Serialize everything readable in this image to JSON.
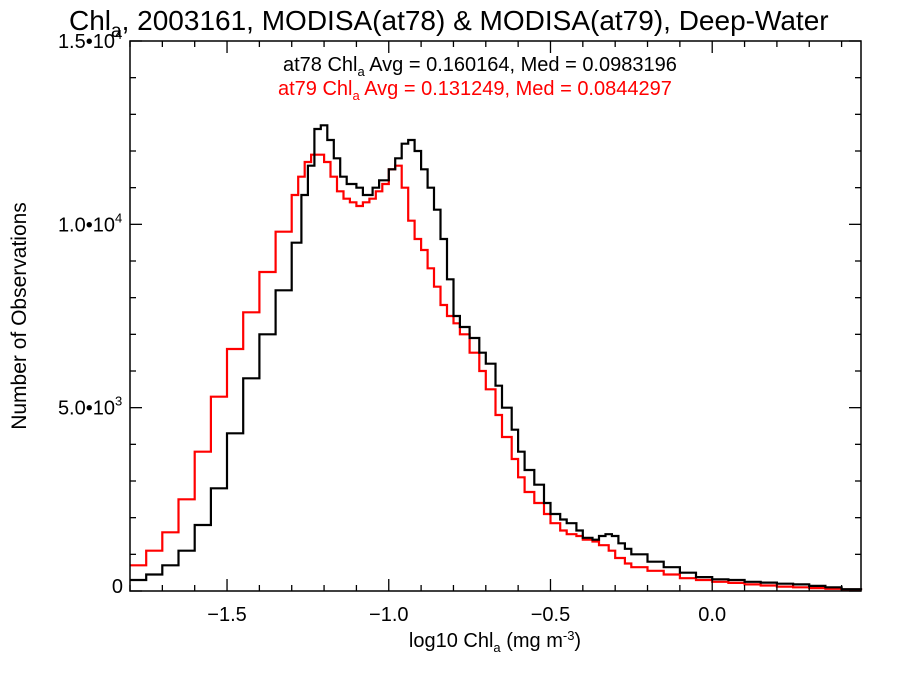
{
  "chart_data": {
    "type": "line",
    "style": "step",
    "title": {
      "main": "Chl",
      "sub": "a",
      "rest": ", 2003161, MODISA(at78) & MODISA(at79), Deep-Water"
    },
    "xlabel": {
      "main": "log10 Chl",
      "sub": "a",
      "rest": " (mg m",
      "sup": "-3",
      "end": ")"
    },
    "ylabel": "Number of Observations",
    "xlim": [
      -1.8,
      0.46
    ],
    "ylim": [
      0,
      15000
    ],
    "x_ticks": [
      {
        "value": -1.5,
        "label": "-1.5"
      },
      {
        "value": -1.0,
        "label": "-1.0"
      },
      {
        "value": -0.5,
        "label": "-0.5"
      },
      {
        "value": 0.0,
        "label": "0.0"
      }
    ],
    "y_ticks": [
      {
        "value": 0,
        "label": "0",
        "exp": ""
      },
      {
        "value": 5000,
        "label": "5.0•10",
        "exp": "3"
      },
      {
        "value": 10000,
        "label": "1.0•10",
        "exp": "4"
      },
      {
        "value": 15000,
        "label": "1.5•10",
        "exp": "4"
      }
    ],
    "grid": false,
    "legend": [
      {
        "color": "#000000",
        "prefix": "at78 Chl",
        "sub": "a",
        "suffix": " Avg = 0.160164, Med = 0.0983196"
      },
      {
        "color": "#ff0000",
        "prefix": "at79 Chl",
        "sub": "a",
        "suffix": " Avg = 0.131249, Med = 0.0844297"
      }
    ],
    "series": [
      {
        "name": "at78",
        "color": "#000000",
        "x": [
          -1.8,
          -1.75,
          -1.7,
          -1.65,
          -1.6,
          -1.55,
          -1.5,
          -1.45,
          -1.4,
          -1.35,
          -1.3,
          -1.27,
          -1.25,
          -1.23,
          -1.21,
          -1.19,
          -1.17,
          -1.15,
          -1.13,
          -1.1,
          -1.08,
          -1.05,
          -1.03,
          -1.0,
          -0.98,
          -0.96,
          -0.94,
          -0.92,
          -0.9,
          -0.88,
          -0.86,
          -0.84,
          -0.82,
          -0.8,
          -0.78,
          -0.75,
          -0.72,
          -0.7,
          -0.67,
          -0.65,
          -0.62,
          -0.6,
          -0.58,
          -0.55,
          -0.52,
          -0.5,
          -0.47,
          -0.45,
          -0.42,
          -0.4,
          -0.37,
          -0.35,
          -0.33,
          -0.31,
          -0.29,
          -0.27,
          -0.25,
          -0.2,
          -0.15,
          -0.1,
          -0.05,
          0.0,
          0.05,
          0.1,
          0.15,
          0.2,
          0.25,
          0.3,
          0.35,
          0.4,
          0.46
        ],
        "y": [
          300,
          450,
          700,
          1100,
          1800,
          2800,
          4300,
          5800,
          7000,
          8200,
          9500,
          10800,
          11600,
          12600,
          12700,
          12300,
          11800,
          11300,
          11100,
          11000,
          10800,
          11000,
          11200,
          11500,
          11800,
          12200,
          12300,
          12000,
          11500,
          11000,
          10400,
          9600,
          8500,
          7500,
          7200,
          6900,
          6500,
          6200,
          5600,
          5000,
          4400,
          3800,
          3300,
          2900,
          2400,
          2100,
          1950,
          1850,
          1650,
          1450,
          1400,
          1500,
          1550,
          1500,
          1300,
          1150,
          1000,
          800,
          650,
          500,
          380,
          320,
          300,
          250,
          230,
          200,
          180,
          140,
          100,
          50,
          20
        ]
      },
      {
        "name": "at79",
        "color": "#ff0000",
        "x": [
          -1.8,
          -1.75,
          -1.7,
          -1.65,
          -1.6,
          -1.55,
          -1.5,
          -1.45,
          -1.4,
          -1.35,
          -1.3,
          -1.28,
          -1.26,
          -1.24,
          -1.22,
          -1.2,
          -1.18,
          -1.16,
          -1.14,
          -1.12,
          -1.1,
          -1.08,
          -1.06,
          -1.04,
          -1.02,
          -1.0,
          -0.98,
          -0.96,
          -0.94,
          -0.92,
          -0.9,
          -0.88,
          -0.86,
          -0.84,
          -0.82,
          -0.8,
          -0.78,
          -0.75,
          -0.72,
          -0.7,
          -0.67,
          -0.65,
          -0.62,
          -0.6,
          -0.58,
          -0.55,
          -0.52,
          -0.5,
          -0.47,
          -0.45,
          -0.42,
          -0.4,
          -0.37,
          -0.35,
          -0.32,
          -0.3,
          -0.27,
          -0.25,
          -0.2,
          -0.15,
          -0.1,
          -0.05,
          0.0,
          0.05,
          0.1,
          0.15,
          0.2,
          0.25,
          0.3,
          0.35,
          0.4,
          0.46
        ],
        "y": [
          700,
          1100,
          1600,
          2500,
          3800,
          5300,
          6600,
          7600,
          8700,
          9800,
          10800,
          11300,
          11700,
          11900,
          11900,
          11700,
          11300,
          10900,
          10700,
          10600,
          10500,
          10600,
          10700,
          10900,
          11100,
          11500,
          11600,
          11000,
          10100,
          9600,
          9300,
          8800,
          8300,
          7800,
          7500,
          7300,
          7000,
          6500,
          6000,
          5500,
          4800,
          4200,
          3600,
          3100,
          2700,
          2400,
          2100,
          1850,
          1650,
          1550,
          1500,
          1400,
          1350,
          1250,
          1100,
          900,
          750,
          650,
          550,
          450,
          350,
          300,
          250,
          220,
          180,
          150,
          120,
          100,
          80,
          60,
          40,
          20
        ]
      }
    ]
  }
}
